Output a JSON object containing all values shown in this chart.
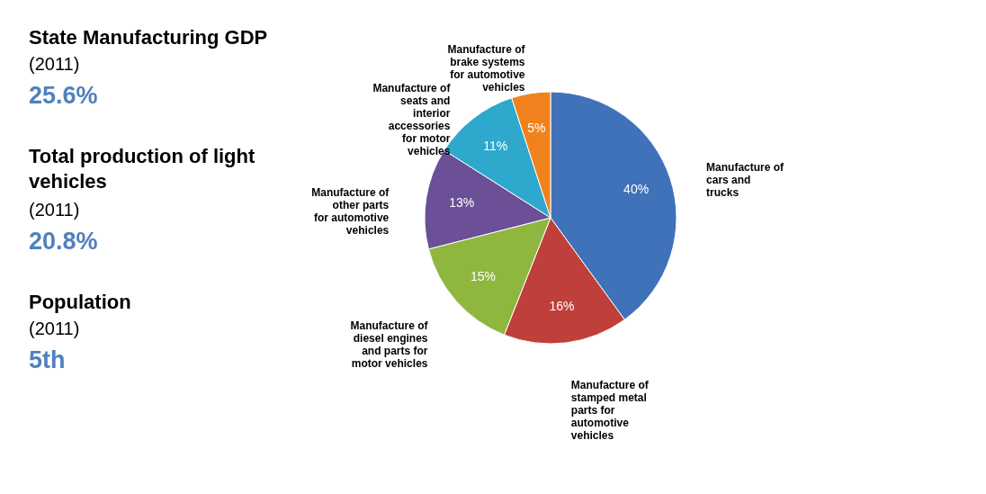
{
  "chart_data": [
    {
      "type": "other",
      "annotations": [
        "State Manufacturing GDP",
        "(2011)",
        "25.6%",
        "Total production of light vehicles",
        "(2011)",
        "20.8%",
        "Population",
        "(2011)",
        "5th"
      ]
    },
    {
      "type": "pie",
      "categories": [
        "Manufacture of cars and trucks",
        "Manufacture of stamped metal parts for automotive vehicles",
        "Manufacture of diesel engines and parts for motor vehicles",
        "Manufacture of other parts for automotive vehicles",
        "Manufacture of seats and interior accessories for motor vehicles",
        "Manufacture of brake systems for automotive vehicles"
      ],
      "values": [
        40,
        16,
        15,
        13,
        11,
        5
      ],
      "colors": [
        "#3f72b9",
        "#bf3f3a",
        "#8fb740",
        "#6b4f97",
        "#2ea8cc",
        "#f0821e"
      ],
      "value_labels": [
        "40%",
        "16%",
        "15%",
        "13%",
        "11%",
        "5%"
      ]
    }
  ]
}
